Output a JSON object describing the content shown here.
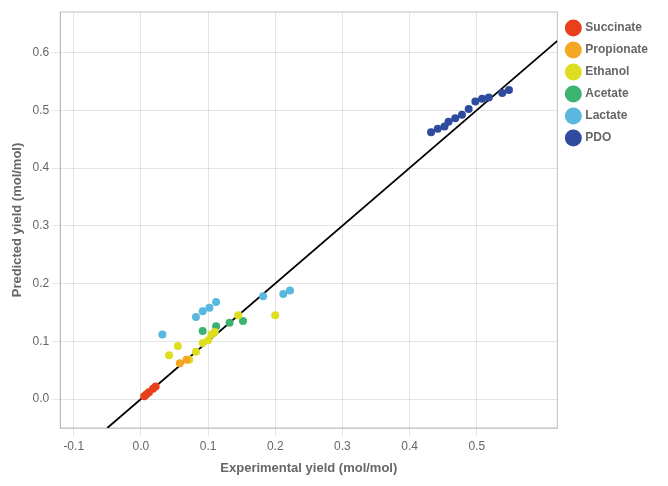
{
  "chart_data": {
    "type": "scatter",
    "xlabel": "Experimental yield (mol/mol)",
    "ylabel": "Predicted yield (mol/mol)",
    "xlim": [
      -0.12,
      0.62
    ],
    "ylim": [
      -0.05,
      0.67
    ],
    "xticks": [
      -0.1,
      {
        "value": 0.0,
        "label": "0.0"
      },
      0.1,
      0.2,
      0.3,
      0.4,
      0.5
    ],
    "yticks": [
      {
        "value": 0.0,
        "label": "0.0"
      },
      0.1,
      0.2,
      0.3,
      0.4,
      0.5,
      0.6
    ],
    "grid": true,
    "legend": "right",
    "series": [
      {
        "type": "line",
        "line_style": "solid",
        "color": "#000000",
        "x": [
          -0.05,
          0.62
        ],
        "values": [
          -0.05,
          0.62
        ]
      },
      {
        "name": "Succinate",
        "color": "#e8401c",
        "x": [
          0.005,
          0.008,
          0.012,
          0.018,
          0.022
        ],
        "values": [
          0.005,
          0.008,
          0.012,
          0.018,
          0.022
        ]
      },
      {
        "name": "Propionate",
        "color": "#f5a623",
        "x": [
          0.012,
          0.058,
          0.068
        ],
        "values": [
          0.012,
          0.062,
          0.068
        ]
      },
      {
        "name": "Ethanol",
        "color": "#dede20",
        "x": [
          0.042,
          0.055,
          0.072,
          0.082,
          0.092,
          0.1,
          0.105,
          0.11,
          0.145,
          0.2
        ],
        "values": [
          0.076,
          0.092,
          0.068,
          0.082,
          0.097,
          0.102,
          0.112,
          0.116,
          0.145,
          0.145
        ]
      },
      {
        "name": "Acetate",
        "color": "#3cb371",
        "x": [
          0.092,
          0.112,
          0.132,
          0.152
        ],
        "values": [
          0.118,
          0.126,
          0.132,
          0.135
        ]
      },
      {
        "name": "Lactate",
        "color": "#5ab8e0",
        "x": [
          0.032,
          0.082,
          0.092,
          0.102,
          0.112,
          0.182,
          0.212,
          0.222
        ],
        "values": [
          0.112,
          0.142,
          0.152,
          0.158,
          0.168,
          0.178,
          0.182,
          0.188
        ]
      },
      {
        "name": "PDO",
        "color": "#2e4b9e",
        "x": [
          0.432,
          0.442,
          0.452,
          0.458,
          0.468,
          0.478,
          0.488,
          0.498,
          0.508,
          0.518,
          0.538,
          0.548
        ],
        "values": [
          0.462,
          0.468,
          0.472,
          0.48,
          0.486,
          0.492,
          0.502,
          0.515,
          0.52,
          0.522,
          0.53,
          0.535
        ]
      }
    ]
  }
}
